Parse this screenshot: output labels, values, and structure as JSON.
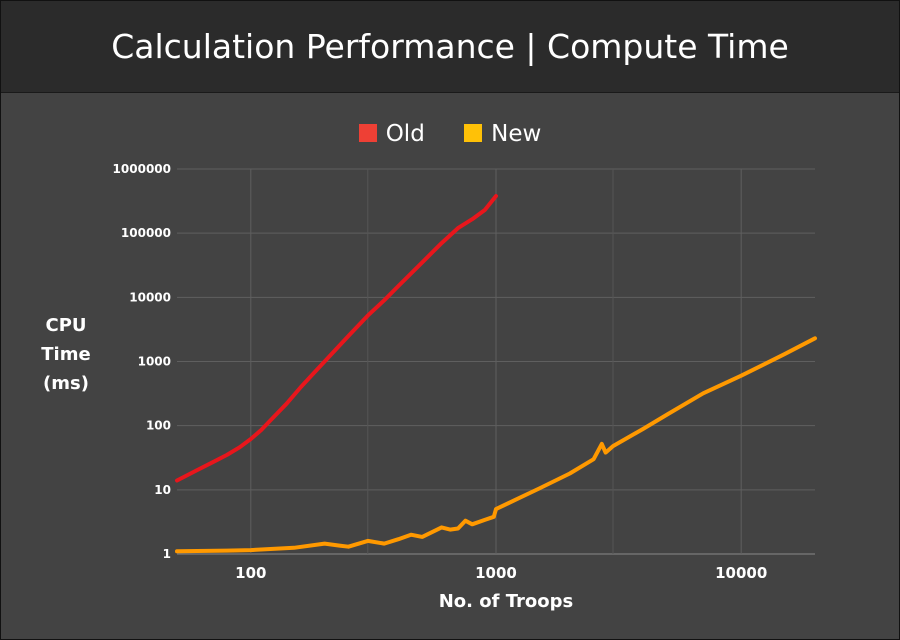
{
  "chart_data": {
    "type": "line",
    "title": "Calculation Performance | Compute Time",
    "xlabel": "No. of Troops",
    "ylabel_lines": [
      "CPU",
      "Time",
      "(ms)"
    ],
    "x_scale": "log",
    "y_scale": "log",
    "xlim": [
      50,
      20000
    ],
    "ylim": [
      1,
      1000000
    ],
    "x_ticks": [
      100,
      1000,
      10000
    ],
    "x_tick_labels": [
      "100",
      "1000",
      "10000"
    ],
    "y_ticks": [
      1,
      10,
      100,
      1000,
      10000,
      100000,
      1000000
    ],
    "y_tick_labels": [
      "1",
      "10",
      "100",
      "1000",
      "10000",
      "100000",
      "1000000"
    ],
    "grid": true,
    "legend_position": "top-center",
    "series": [
      {
        "name": "Old",
        "color": "#e8161c",
        "points": [
          [
            50,
            14
          ],
          [
            60,
            20
          ],
          [
            70,
            27
          ],
          [
            80,
            35
          ],
          [
            90,
            46
          ],
          [
            100,
            62
          ],
          [
            110,
            85
          ],
          [
            120,
            120
          ],
          [
            140,
            220
          ],
          [
            160,
            400
          ],
          [
            180,
            650
          ],
          [
            200,
            1000
          ],
          [
            250,
            2500
          ],
          [
            300,
            5200
          ],
          [
            350,
            9000
          ],
          [
            400,
            15000
          ],
          [
            500,
            35000
          ],
          [
            600,
            70000
          ],
          [
            700,
            120000
          ],
          [
            800,
            165000
          ],
          [
            900,
            230000
          ],
          [
            1000,
            380000
          ]
        ]
      },
      {
        "name": "New",
        "color": "#ff9900",
        "points": [
          [
            50,
            1.1
          ],
          [
            80,
            1.13
          ],
          [
            100,
            1.15
          ],
          [
            150,
            1.25
          ],
          [
            200,
            1.45
          ],
          [
            230,
            1.35
          ],
          [
            250,
            1.3
          ],
          [
            300,
            1.6
          ],
          [
            350,
            1.45
          ],
          [
            400,
            1.7
          ],
          [
            450,
            2.0
          ],
          [
            500,
            1.85
          ],
          [
            600,
            2.6
          ],
          [
            650,
            2.4
          ],
          [
            700,
            2.5
          ],
          [
            750,
            3.3
          ],
          [
            800,
            2.9
          ],
          [
            900,
            3.4
          ],
          [
            980,
            3.8
          ],
          [
            1000,
            5.0
          ],
          [
            1200,
            7.0
          ],
          [
            1500,
            10.5
          ],
          [
            2000,
            18
          ],
          [
            2500,
            30
          ],
          [
            2700,
            52
          ],
          [
            2800,
            38
          ],
          [
            3000,
            48
          ],
          [
            4000,
            90
          ],
          [
            5000,
            150
          ],
          [
            7000,
            320
          ],
          [
            10000,
            600
          ],
          [
            15000,
            1300
          ],
          [
            20000,
            2300
          ]
        ]
      }
    ]
  },
  "legend": {
    "items": [
      {
        "label": "Old",
        "color": "#ee4035"
      },
      {
        "label": "New",
        "color": "#ffc107"
      }
    ]
  }
}
